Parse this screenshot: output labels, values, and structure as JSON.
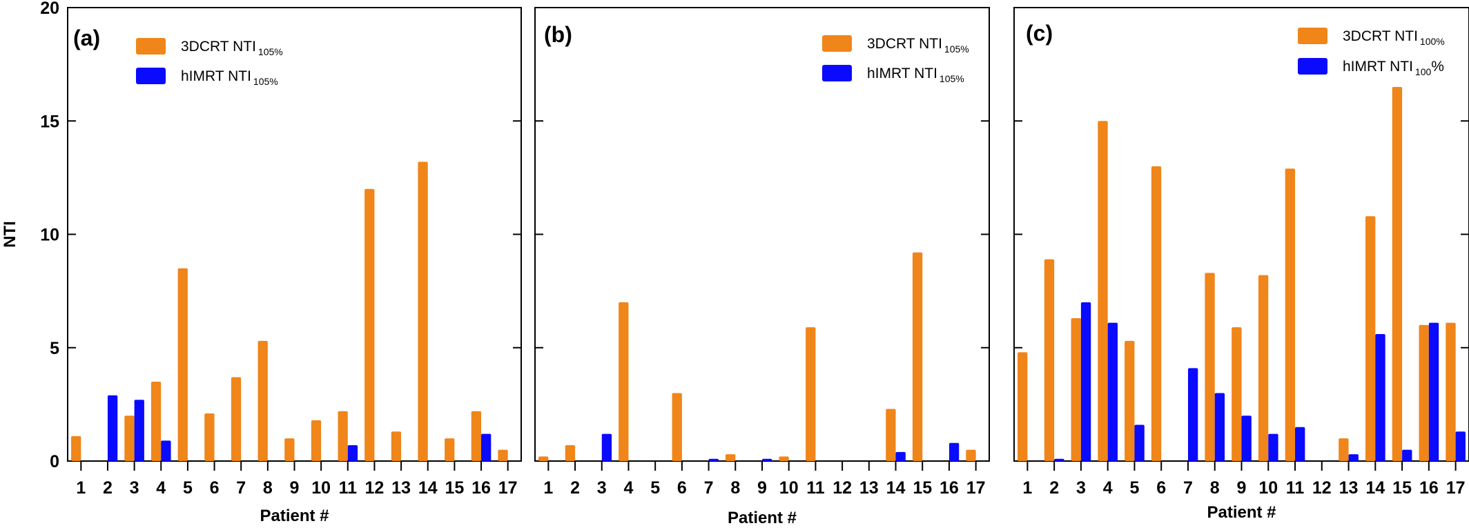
{
  "chart_data": [
    {
      "type": "bar",
      "panel_label": "(a)",
      "categories": [
        "1",
        "2",
        "3",
        "4",
        "5",
        "6",
        "7",
        "8",
        "9",
        "10",
        "11",
        "12",
        "13",
        "14",
        "15",
        "16",
        "17"
      ],
      "series": [
        {
          "name": "3DCRT NTI",
          "subscript": "105%",
          "color": "#f08519",
          "values": [
            1.1,
            0,
            2.0,
            3.5,
            8.5,
            2.1,
            3.7,
            5.3,
            1.0,
            1.8,
            2.2,
            12.0,
            1.3,
            13.2,
            1.0,
            2.2,
            0.5
          ]
        },
        {
          "name": "hIMRT NTI",
          "subscript": "105%",
          "color": "#0a0aff",
          "values": [
            0,
            2.9,
            2.7,
            0.9,
            0,
            0,
            0,
            0,
            0,
            0,
            0.7,
            0,
            0,
            0,
            0,
            1.2,
            0
          ]
        }
      ],
      "xlabel": "Patient #",
      "ylabel": "NTI",
      "ylim": [
        0,
        20
      ],
      "yticks": [
        "0",
        "5",
        "10",
        "15",
        "20"
      ],
      "legend": "top-left",
      "grid": false
    },
    {
      "type": "bar",
      "panel_label": "(b)",
      "categories": [
        "1",
        "2",
        "3",
        "4",
        "5",
        "6",
        "7",
        "8",
        "9",
        "10",
        "11",
        "12",
        "13",
        "14",
        "15",
        "16",
        "17"
      ],
      "series": [
        {
          "name": "3DCRT NTI",
          "subscript": "105%",
          "color": "#f08519",
          "values": [
            0.2,
            0.7,
            0,
            7.0,
            0,
            3.0,
            0,
            0.3,
            0,
            0.2,
            5.9,
            0,
            0,
            2.3,
            9.2,
            0,
            0.5
          ]
        },
        {
          "name": "hIMRT NTI",
          "subscript": "105%",
          "color": "#0a0aff",
          "values": [
            0,
            0,
            1.2,
            0,
            0,
            0,
            0.1,
            0,
            0.1,
            0,
            0,
            0,
            0,
            0.4,
            0,
            0.8,
            0
          ]
        }
      ],
      "xlabel": "Patient #",
      "ylabel": "",
      "ylim": [
        0,
        20
      ],
      "legend": "top-right",
      "grid": false
    },
    {
      "type": "bar",
      "panel_label": "(c)",
      "categories": [
        "1",
        "2",
        "3",
        "4",
        "5",
        "6",
        "7",
        "8",
        "9",
        "10",
        "11",
        "12",
        "13",
        "14",
        "15",
        "16",
        "17"
      ],
      "series": [
        {
          "name": "3DCRT NTI",
          "subscript": "100%",
          "color": "#f08519",
          "values": [
            4.8,
            8.9,
            6.3,
            15.0,
            5.3,
            13.0,
            0,
            8.3,
            5.9,
            8.2,
            12.9,
            0,
            1.0,
            10.8,
            16.5,
            6.0,
            6.1
          ]
        },
        {
          "name": "hIMRT NTI",
          "subscript": "100",
          "suffix": "%",
          "color": "#0a0aff",
          "values": [
            0,
            0.1,
            7.0,
            6.1,
            1.6,
            0,
            4.1,
            3.0,
            2.0,
            1.2,
            1.5,
            0,
            0.3,
            5.6,
            0.5,
            6.1,
            1.3
          ]
        }
      ],
      "xlabel": "Patient #",
      "ylabel": "",
      "ylim": [
        0,
        20
      ],
      "legend": "top-right",
      "grid": false
    }
  ]
}
